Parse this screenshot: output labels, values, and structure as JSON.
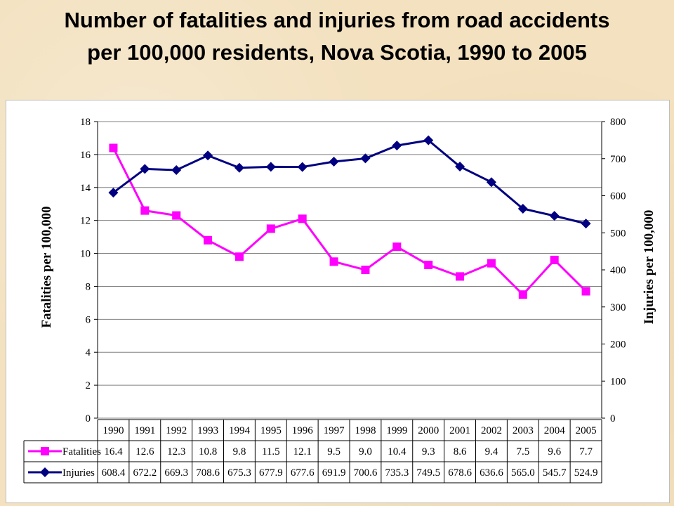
{
  "title": {
    "line1": "Number of fatalities and injuries from road accidents",
    "line2": "per 100,000 residents, Nova Scotia, 1990 to 2005"
  },
  "chart_data": {
    "type": "line",
    "categories": [
      "1990",
      "1991",
      "1992",
      "1993",
      "1994",
      "1995",
      "1996",
      "1997",
      "1998",
      "1999",
      "2000",
      "2001",
      "2002",
      "2003",
      "2004",
      "2005"
    ],
    "series": [
      {
        "name": "Fatalities",
        "axis": "left",
        "color": "#ff00ff",
        "marker": "square",
        "values": [
          16.4,
          12.6,
          12.3,
          10.8,
          9.8,
          11.5,
          12.1,
          9.5,
          9.0,
          10.4,
          9.3,
          8.6,
          9.4,
          7.5,
          9.6,
          7.7
        ],
        "labels": [
          "16.4",
          "12.6",
          "12.3",
          "10.8",
          "9.8",
          "11.5",
          "12.1",
          "9.5",
          "9.0",
          "10.4",
          "9.3",
          "8.6",
          "9.4",
          "7.5",
          "9.6",
          "7.7"
        ]
      },
      {
        "name": "Injuries",
        "axis": "right",
        "color": "#000080",
        "marker": "diamond",
        "values": [
          608.4,
          672.2,
          669.3,
          708.6,
          675.3,
          677.9,
          677.6,
          691.9,
          700.6,
          735.3,
          749.5,
          678.6,
          636.6,
          565.0,
          545.7,
          524.9
        ],
        "labels": [
          "608.4",
          "672.2",
          "669.3",
          "708.6",
          "675.3",
          "677.9",
          "677.6",
          "691.9",
          "700.6",
          "735.3",
          "749.5",
          "678.6",
          "636.6",
          "565.0",
          "545.7",
          "524.9"
        ]
      }
    ],
    "ylabel": "Fatalities per 100,000",
    "y2label": "Injuries per 100,000",
    "ylim": [
      0,
      18
    ],
    "y2lim": [
      0,
      800
    ],
    "yticks": [
      "0",
      "2",
      "4",
      "6",
      "8",
      "10",
      "12",
      "14",
      "16",
      "18"
    ],
    "y2ticks": [
      "0",
      "100",
      "200",
      "300",
      "400",
      "500",
      "600",
      "700",
      "800"
    ],
    "grid": true,
    "legend": "data-table"
  }
}
